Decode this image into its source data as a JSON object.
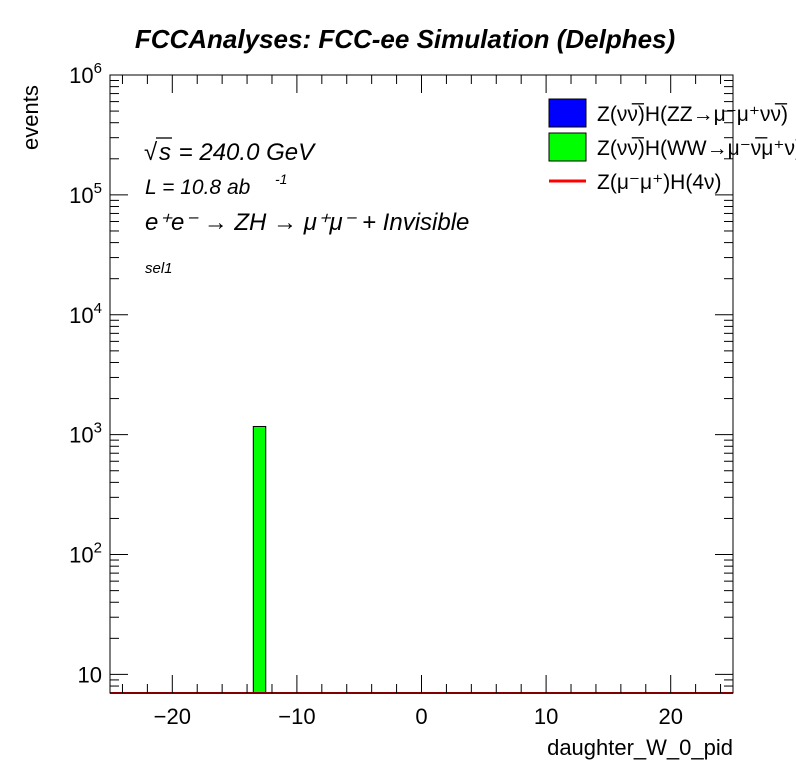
{
  "chart_data": {
    "type": "bar",
    "title": "FCCAnalyses: FCC-ee Simulation (Delphes)",
    "xlabel": "daughter_W_0_pid",
    "ylabel": "events",
    "xlim": [
      -25,
      25
    ],
    "ylim": [
      7,
      1000000
    ],
    "y_scale": "log",
    "x_ticks": [
      -20,
      -10,
      0,
      10,
      20
    ],
    "x_tick_labels": [
      "−20",
      "−10",
      "0",
      "10",
      "20"
    ],
    "y_ticks": [
      10,
      100,
      1000,
      10000,
      100000,
      1000000
    ],
    "y_tick_labels": [
      {
        "base": "10",
        "exp": ""
      },
      {
        "base": "10",
        "exp": "2"
      },
      {
        "base": "10",
        "exp": "3"
      },
      {
        "base": "10",
        "exp": "4"
      },
      {
        "base": "10",
        "exp": "5"
      },
      {
        "base": "10",
        "exp": "6"
      }
    ],
    "bins": [
      {
        "x_low": -13.5,
        "x_high": -12.5,
        "value": 1170,
        "color": "#00ff00"
      }
    ],
    "legend_position": "top-right",
    "legend": [
      {
        "label": "Z(νν̅)H(ZZ→μ⁻μ⁺νν̅)",
        "color": "#0000ff",
        "kind": "box"
      },
      {
        "label": "Z(νν̅)H(WW→μ⁻ν̅μ⁺ν)",
        "color": "#00ff00",
        "kind": "box"
      },
      {
        "label": "Z(μ⁻μ⁺)H(4ν)",
        "color": "#ff0000",
        "kind": "line"
      }
    ],
    "annotations": {
      "sqrt_s": "s",
      "energy": " = 240.0 GeV",
      "lumi": "L = 10.8 ab",
      "lumi_exp": "-1",
      "process": "e⁺e⁻ → ZH → μ⁺μ⁻ + Invisible",
      "selection": "sel1"
    },
    "colors": {
      "zz": "#0000ff",
      "ww": "#00ff00",
      "signal_line": "#ff0000"
    },
    "grid": false
  }
}
